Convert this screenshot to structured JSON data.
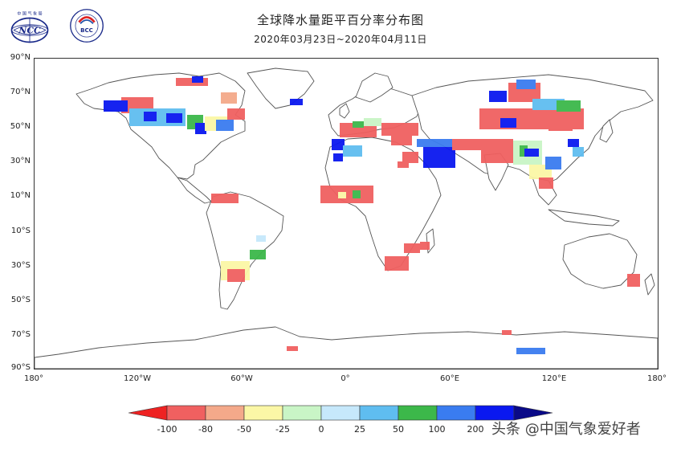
{
  "title": "全球降水量距平百分率分布图",
  "subtitle": "2020年03月23日~2020年04月11日",
  "logos": {
    "ncc_text": "NCC",
    "bcc_text": "BCC",
    "ncc_top_text": "中 国 气 象 局",
    "bcc_ring_text": "BEIJING CLIMATE CENTER"
  },
  "map": {
    "lat_labels": [
      "90°N",
      "70°N",
      "50°N",
      "30°N",
      "10°N",
      "10°S",
      "30°S",
      "50°S",
      "70°S",
      "90°S"
    ],
    "lon_labels": [
      "180°",
      "120°W",
      "60°W",
      "0°",
      "60°E",
      "120°E",
      "180°"
    ]
  },
  "colorbar": {
    "labels": [
      "-100",
      "-80",
      "-50",
      "-25",
      "0",
      "25",
      "50",
      "100",
      "200"
    ],
    "colors": [
      "#ee2222",
      "#f06060",
      "#f4a98a",
      "#fbf7a6",
      "#c9f5c6",
      "#c6e8fb",
      "#5fbdf0",
      "#3cb84a",
      "#3a7cf0",
      "#0a18f0",
      "#0a0a88"
    ]
  },
  "watermark": "头条 @中国气象爱好者"
}
